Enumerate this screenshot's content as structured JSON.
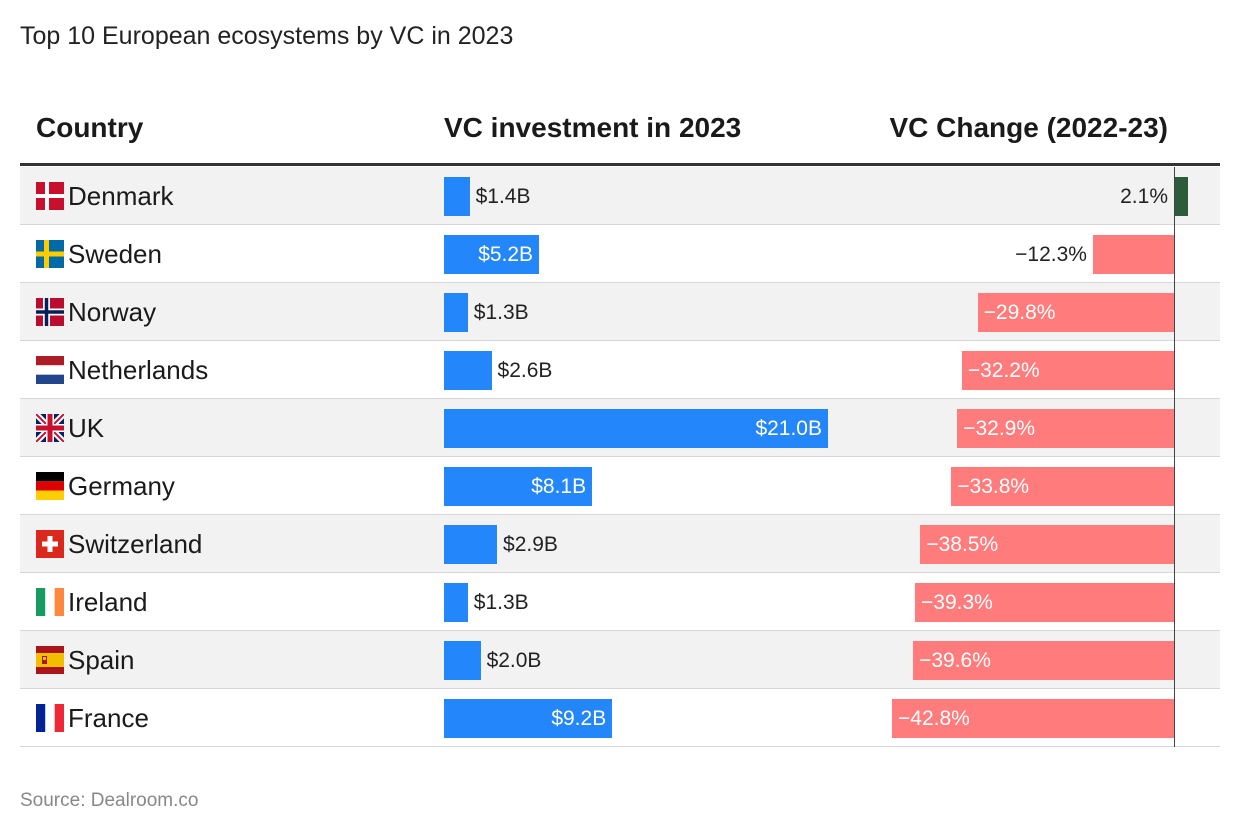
{
  "header": {
    "title": "Top 10 European ecosystems by VC in 2023"
  },
  "columns": {
    "country": "Country",
    "investment": "VC investment in 2023",
    "change": "VC Change (2022-23)"
  },
  "source": "Source: Dealroom.co",
  "colors": {
    "investment_bar": "#2486fb",
    "positive_change": "#2c5c3a",
    "negative_change": "#ff7b7c"
  },
  "chart_data": {
    "type": "table",
    "columns": [
      "Country",
      "VC investment in 2023",
      "VC Change (2022-23)"
    ],
    "rows": [
      {
        "country": "Denmark",
        "flag": "denmark-flag-icon",
        "investment": 1.4,
        "investment_label": "$1.4B",
        "change": 2.1,
        "change_label": "2.1%"
      },
      {
        "country": "Sweden",
        "flag": "sweden-flag-icon",
        "investment": 5.2,
        "investment_label": "$5.2B",
        "change": -12.3,
        "change_label": "−12.3%"
      },
      {
        "country": "Norway",
        "flag": "norway-flag-icon",
        "investment": 1.3,
        "investment_label": "$1.3B",
        "change": -29.8,
        "change_label": "−29.8%"
      },
      {
        "country": "Netherlands",
        "flag": "netherlands-flag-icon",
        "investment": 2.6,
        "investment_label": "$2.6B",
        "change": -32.2,
        "change_label": "−32.2%"
      },
      {
        "country": "UK",
        "flag": "uk-flag-icon",
        "investment": 21.0,
        "investment_label": "$21.0B",
        "change": -32.9,
        "change_label": "−32.9%"
      },
      {
        "country": "Germany",
        "flag": "germany-flag-icon",
        "investment": 8.1,
        "investment_label": "$8.1B",
        "change": -33.8,
        "change_label": "−33.8%"
      },
      {
        "country": "Switzerland",
        "flag": "switzerland-flag-icon",
        "investment": 2.9,
        "investment_label": "$2.9B",
        "change": -38.5,
        "change_label": "−38.5%"
      },
      {
        "country": "Ireland",
        "flag": "ireland-flag-icon",
        "investment": 1.3,
        "investment_label": "$1.3B",
        "change": -39.3,
        "change_label": "−39.3%"
      },
      {
        "country": "Spain",
        "flag": "spain-flag-icon",
        "investment": 2.0,
        "investment_label": "$2.0B",
        "change": -39.6,
        "change_label": "−39.6%"
      },
      {
        "country": "France",
        "flag": "france-flag-icon",
        "investment": 9.2,
        "investment_label": "$9.2B",
        "change": -42.8,
        "change_label": "−42.8%"
      }
    ]
  }
}
